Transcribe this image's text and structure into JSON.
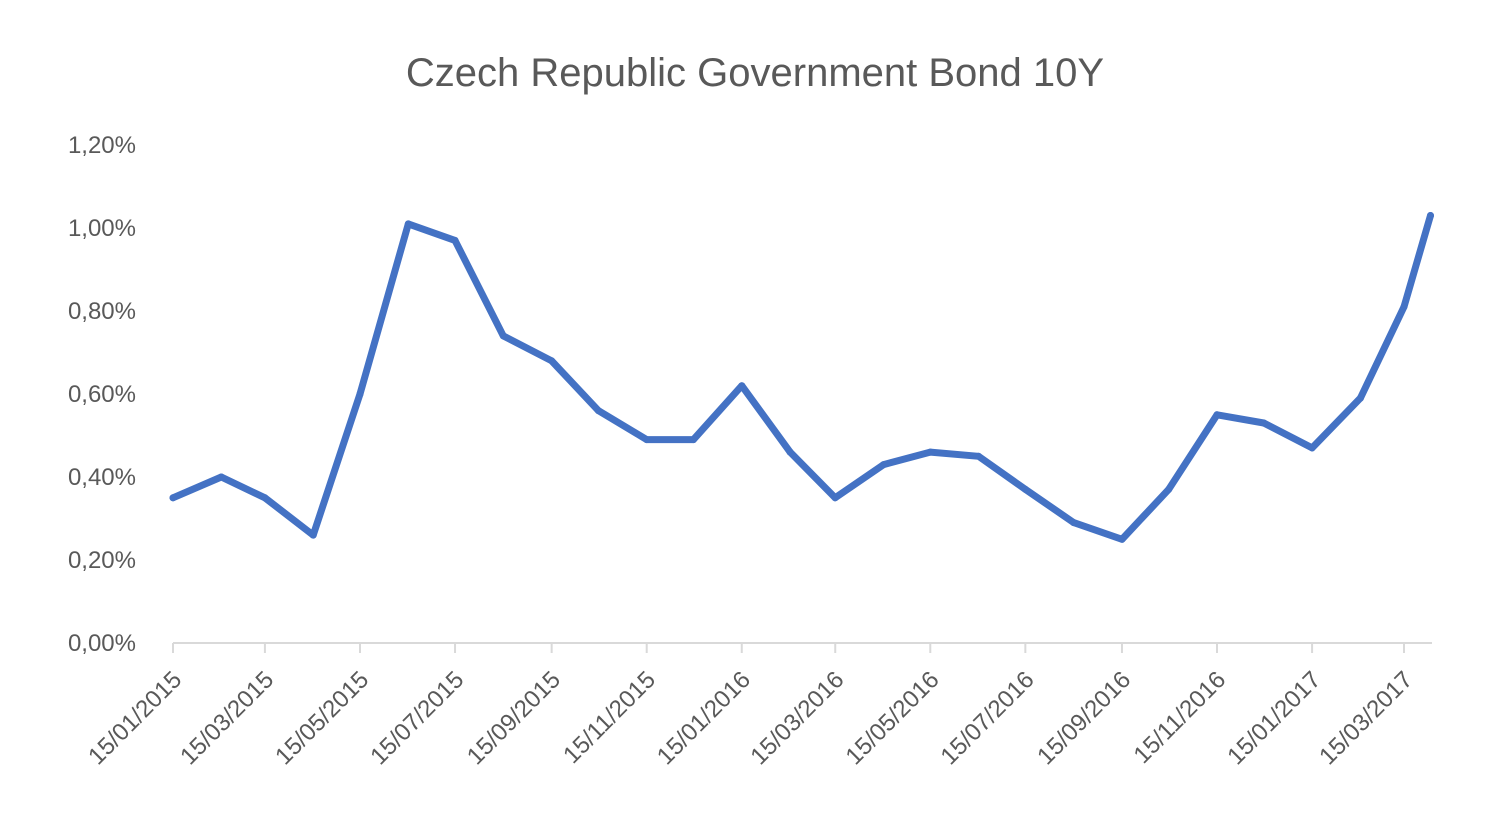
{
  "chart_data": {
    "type": "line",
    "title": "Czech Republic Government Bond 10Y",
    "xlabel": "",
    "ylabel": "",
    "ylim": [
      0,
      1.2
    ],
    "yticks": [
      "0,00%",
      "0,20%",
      "0,40%",
      "0,60%",
      "0,80%",
      "1,00%",
      "1,20%"
    ],
    "ytick_values": [
      0,
      0.2,
      0.4,
      0.6,
      0.8,
      1.0,
      1.2
    ],
    "xtick_labels": [
      "15/01/2015",
      "15/03/2015",
      "15/05/2015",
      "15/07/2015",
      "15/09/2015",
      "15/11/2015",
      "15/01/2016",
      "15/03/2016",
      "15/05/2016",
      "15/07/2016",
      "15/09/2016",
      "15/11/2016",
      "15/01/2017",
      "15/03/2017"
    ],
    "grid": false,
    "legend": "none",
    "line_color": "#4472c4",
    "axis_color": "#d9d9d9",
    "series": [
      {
        "x": [
          "2015-01-15",
          "2015-02-15",
          "2015-03-15",
          "2015-04-15",
          "2015-05-15",
          "2015-06-15",
          "2015-07-15",
          "2015-08-15",
          "2015-09-15",
          "2015-10-15",
          "2015-11-15",
          "2015-12-15",
          "2016-01-15",
          "2016-02-15",
          "2016-03-15",
          "2016-04-15",
          "2016-05-15",
          "2016-06-15",
          "2016-07-15",
          "2016-08-15",
          "2016-09-15",
          "2016-10-15",
          "2016-11-15",
          "2016-12-15",
          "2017-01-15",
          "2017-02-15",
          "2017-03-15",
          "2017-04-01"
        ],
        "values": [
          0.35,
          0.4,
          0.35,
          0.26,
          0.6,
          1.01,
          0.97,
          0.74,
          0.68,
          0.56,
          0.49,
          0.49,
          0.62,
          0.46,
          0.35,
          0.43,
          0.46,
          0.45,
          0.37,
          0.29,
          0.25,
          0.37,
          0.55,
          0.53,
          0.47,
          0.59,
          0.81,
          1.03
        ]
      }
    ]
  }
}
